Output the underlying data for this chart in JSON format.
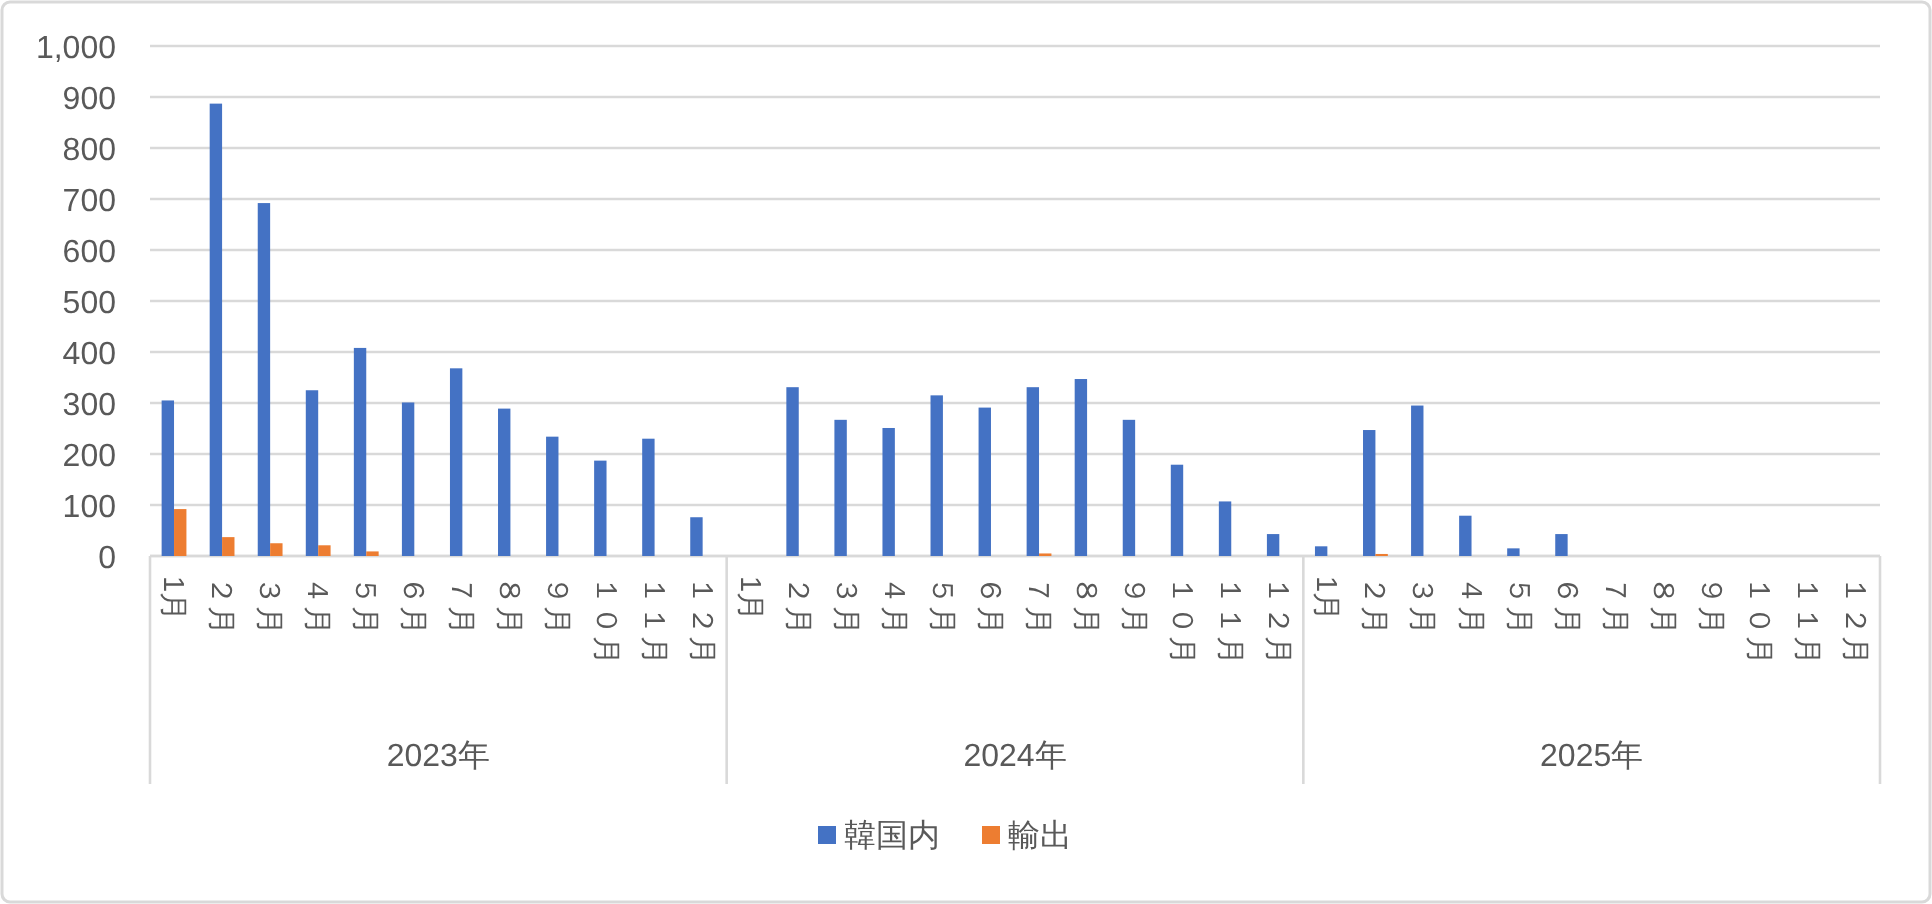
{
  "chart_data": {
    "type": "bar",
    "categories": [
      "1月",
      "２月",
      "３月",
      "４月",
      "５月",
      "６月",
      "７月",
      "８月",
      "９月",
      "１０月",
      "１１月",
      "１２月",
      "1月",
      "２月",
      "３月",
      "４月",
      "５月",
      "６月",
      "７月",
      "８月",
      "９月",
      "１０月",
      "１１月",
      "１２月",
      "1月",
      "２月",
      "３月",
      "４月",
      "５月",
      "６月",
      "７月",
      "８月",
      "９月",
      "１０月",
      "１１月",
      "１２月"
    ],
    "series": [
      {
        "name": "韓国内",
        "color": "#4472c4",
        "values": [
          305,
          887,
          692,
          325,
          408,
          301,
          368,
          289,
          234,
          187,
          230,
          76,
          0,
          331,
          267,
          251,
          315,
          291,
          331,
          347,
          267,
          179,
          107,
          43,
          19,
          247,
          295,
          79,
          15,
          43,
          0,
          0,
          0,
          0,
          0,
          0
        ]
      },
      {
        "name": "輸出",
        "color": "#ed7d31",
        "values": [
          92,
          37,
          25,
          21,
          9,
          0,
          0,
          0,
          0,
          0,
          0,
          0,
          0,
          0,
          0,
          0,
          0,
          0,
          5,
          0,
          0,
          0,
          0,
          0,
          0,
          4,
          0,
          0,
          0,
          0,
          0,
          0,
          0,
          0,
          0,
          0
        ]
      }
    ],
    "annotations": [
      "2023年",
      "2024年",
      "2025年"
    ],
    "ylim": [
      0,
      1000
    ],
    "yticks": [
      0,
      100,
      200,
      300,
      400,
      500,
      600,
      700,
      800,
      900,
      {
        "value": 1000,
        "label": "1,000"
      }
    ],
    "grid": "y",
    "legend": "bottom"
  }
}
